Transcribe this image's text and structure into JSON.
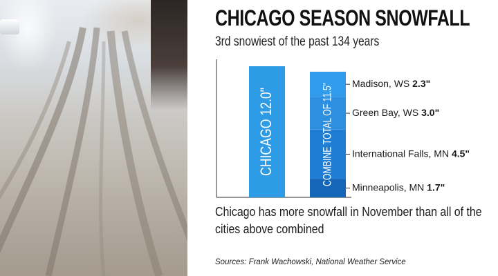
{
  "title": "CHICAGO SEASON SNOWFALL",
  "subtitle": "3rd snowiest of the past 134 years",
  "caption": "Chicago has more snowfall in November than all of the cities above combined",
  "source": "Sources: Frank Wachowski, National Weather Service",
  "colors": {
    "chicago": "#2d9be5",
    "stack": [
      "#1565b8",
      "#1f7dd3",
      "#2d8fe0",
      "#2f9bea"
    ]
  },
  "chart_data": {
    "type": "bar",
    "stacked": true,
    "units": "inches",
    "ylim": [
      0,
      12.0
    ],
    "grid": false,
    "bars": [
      {
        "label": "CHICAGO 12.0\"",
        "value": 12.0
      },
      {
        "label": "COMBINE TOTAL OF 11.5\"",
        "value": 11.5,
        "segments": [
          {
            "name": "Minneapolis, MN",
            "value_label": "1.7\"",
            "value": 1.7
          },
          {
            "name": "International Falls, MN",
            "value_label": "4.5\"",
            "value": 4.5
          },
          {
            "name": "Green Bay, WS",
            "value_label": "3.0\"",
            "value": 3.0
          },
          {
            "name": "Madison, WS",
            "value_label": "2.3\"",
            "value": 2.3
          }
        ]
      }
    ]
  }
}
